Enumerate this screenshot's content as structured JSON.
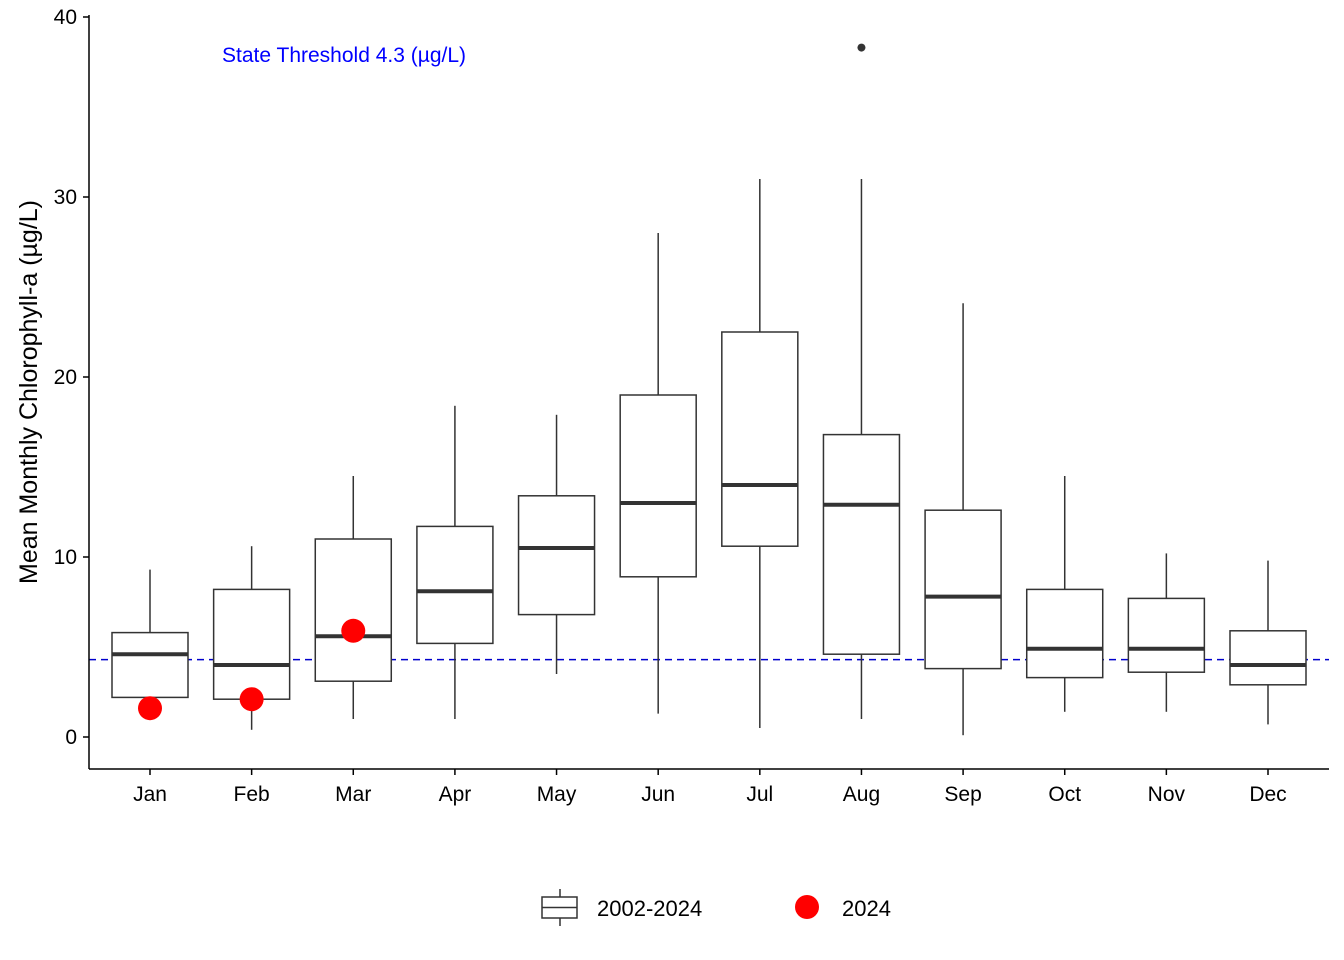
{
  "chart_data": {
    "type": "box",
    "ylabel": "Mean Monthly Chlorophyll-a (µg/L)",
    "xlabel": "",
    "ylim": [
      -1.8,
      40
    ],
    "yticks": [
      0,
      10,
      20,
      30,
      40
    ],
    "categories": [
      "Jan",
      "Feb",
      "Mar",
      "Apr",
      "May",
      "Jun",
      "Jul",
      "Aug",
      "Sep",
      "Oct",
      "Nov",
      "Dec"
    ],
    "boxes": [
      {
        "min": 1.5,
        "q1": 2.2,
        "median": 4.6,
        "q3": 5.8,
        "max": 9.3,
        "outliers": []
      },
      {
        "min": 0.4,
        "q1": 2.1,
        "median": 4.0,
        "q3": 8.2,
        "max": 10.6,
        "outliers": []
      },
      {
        "min": 1.0,
        "q1": 3.1,
        "median": 5.6,
        "q3": 11.0,
        "max": 14.5,
        "outliers": []
      },
      {
        "min": 1.0,
        "q1": 5.2,
        "median": 8.1,
        "q3": 11.7,
        "max": 18.4,
        "outliers": []
      },
      {
        "min": 3.5,
        "q1": 6.8,
        "median": 10.5,
        "q3": 13.4,
        "max": 17.9,
        "outliers": []
      },
      {
        "min": 1.3,
        "q1": 8.9,
        "median": 13.0,
        "q3": 19.0,
        "max": 28.0,
        "outliers": []
      },
      {
        "min": 0.5,
        "q1": 10.6,
        "median": 14.0,
        "q3": 22.5,
        "max": 31.0,
        "outliers": []
      },
      {
        "min": 1.0,
        "q1": 4.6,
        "median": 12.9,
        "q3": 16.8,
        "max": 31.0,
        "outliers": [
          38.3
        ]
      },
      {
        "min": 0.1,
        "q1": 3.8,
        "median": 7.8,
        "q3": 12.6,
        "max": 24.1,
        "outliers": []
      },
      {
        "min": 1.4,
        "q1": 3.3,
        "median": 4.9,
        "q3": 8.2,
        "max": 14.5,
        "outliers": []
      },
      {
        "min": 1.4,
        "q1": 3.6,
        "median": 4.9,
        "q3": 7.7,
        "max": 10.2,
        "outliers": []
      },
      {
        "min": 0.7,
        "q1": 2.9,
        "median": 4.0,
        "q3": 5.9,
        "max": 9.8,
        "outliers": []
      }
    ],
    "points_2024": [
      {
        "month": "Jan",
        "value": 1.6
      },
      {
        "month": "Feb",
        "value": 2.1
      },
      {
        "month": "Mar",
        "value": 5.9
      }
    ],
    "threshold": {
      "value": 4.3,
      "label": "State Threshold 4.3 (µg/L)"
    },
    "legend": {
      "position": "bottom",
      "items": [
        {
          "label": "2002-2024",
          "kind": "box"
        },
        {
          "label": "2024",
          "kind": "point"
        }
      ]
    },
    "colors": {
      "box_line": "#333333",
      "median": "#333333",
      "point_2024": "#ff0000",
      "threshold": "#0000cc",
      "annotation": "#0000ff",
      "axis": "#000000"
    }
  }
}
